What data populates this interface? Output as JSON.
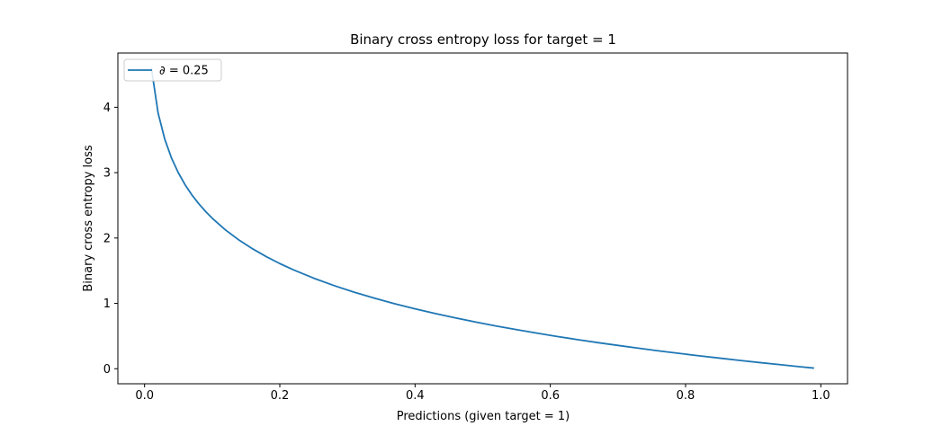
{
  "chart_data": {
    "type": "line",
    "title": "Binary cross entropy loss for target = 1",
    "xlabel": "Predictions (given target = 1)",
    "ylabel": "Binary cross entropy loss",
    "xlim": [
      -0.0395,
      1.0395
    ],
    "ylim": [
      -0.23,
      4.83
    ],
    "xticks": [
      0.0,
      0.2,
      0.4,
      0.6,
      0.8,
      1.0
    ],
    "xtick_labels": [
      "0.0",
      "0.2",
      "0.4",
      "0.6",
      "0.8",
      "1.0"
    ],
    "yticks": [
      0,
      1,
      2,
      3,
      4
    ],
    "ytick_labels": [
      "0",
      "1",
      "2",
      "3",
      "4"
    ],
    "grid": false,
    "legend_position": "top-left",
    "series": [
      {
        "name": "∂ = 0.25",
        "color": "#1f77b4",
        "function": "-ln(x)",
        "x": [
          0.01,
          0.02,
          0.03,
          0.04,
          0.05,
          0.06,
          0.07,
          0.08,
          0.09,
          0.1,
          0.12,
          0.14,
          0.16,
          0.18,
          0.2,
          0.22,
          0.25,
          0.28,
          0.31,
          0.34,
          0.37,
          0.4,
          0.43,
          0.46,
          0.49,
          0.52,
          0.55,
          0.58,
          0.61,
          0.64,
          0.67,
          0.7,
          0.73,
          0.76,
          0.79,
          0.82,
          0.85,
          0.88,
          0.91,
          0.94,
          0.97,
          0.99
        ],
        "y": [
          4.605,
          3.912,
          3.507,
          3.219,
          2.996,
          2.813,
          2.659,
          2.526,
          2.408,
          2.303,
          2.12,
          1.966,
          1.833,
          1.715,
          1.609,
          1.514,
          1.386,
          1.273,
          1.171,
          1.079,
          0.994,
          0.916,
          0.844,
          0.777,
          0.713,
          0.654,
          0.598,
          0.545,
          0.494,
          0.446,
          0.4,
          0.357,
          0.315,
          0.274,
          0.236,
          0.198,
          0.163,
          0.128,
          0.094,
          0.062,
          0.03,
          0.01
        ]
      }
    ]
  }
}
